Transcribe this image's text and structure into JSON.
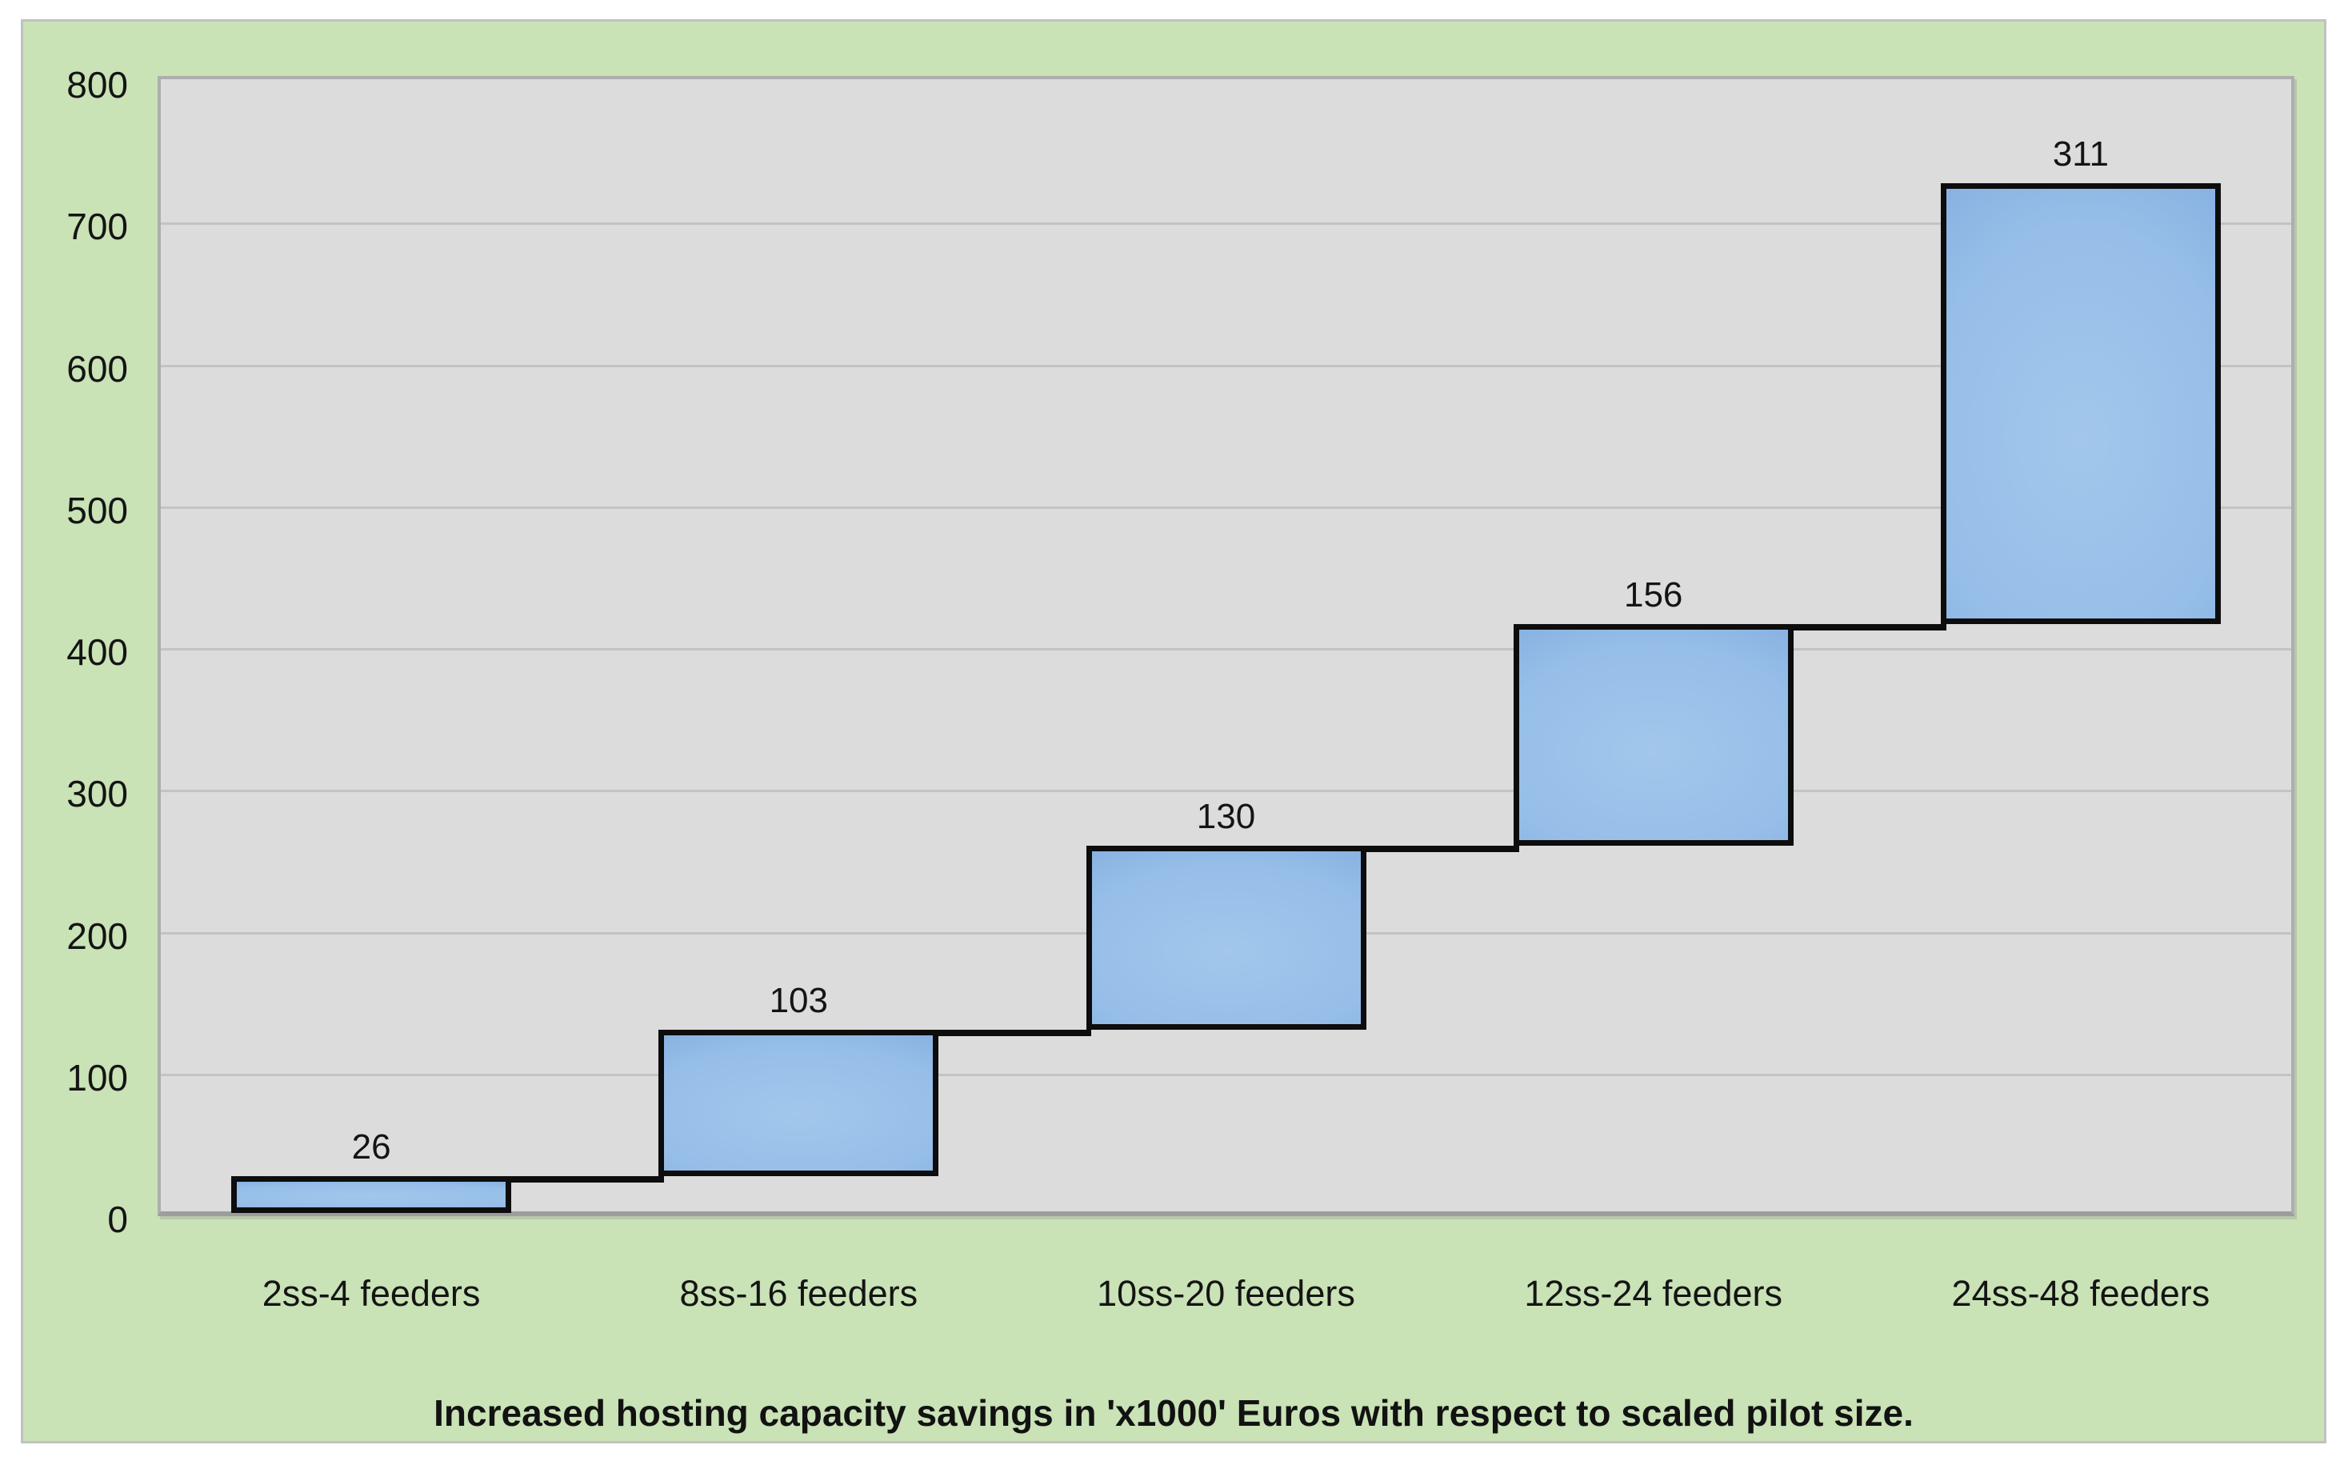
{
  "chart_data": {
    "type": "bar",
    "variant": "waterfall",
    "title": "Increased hosting capacity savings in 'x1000' Euros with respect to scaled pilot size.",
    "categories": [
      "2ss-4 feeders",
      "8ss-16 feeders",
      "10ss-20 feeders",
      "12ss-24 feeders",
      "24ss-48 feeders"
    ],
    "values": [
      26,
      103,
      130,
      156,
      311
    ],
    "data_labels": [
      "26",
      "103",
      "130",
      "156",
      "311"
    ],
    "cumulative_levels": [
      26,
      129,
      259,
      415,
      726
    ],
    "ylim": [
      0,
      800
    ],
    "yticks": [
      0,
      100,
      200,
      300,
      400,
      500,
      600,
      700,
      800
    ],
    "grid": "horizontal",
    "legend": "none",
    "colors": {
      "panel_background": "#c9e2b6",
      "plot_background": "#dcdcdc",
      "gridline": "#c3c3c3",
      "bar_fill_light": "#9cc2ea",
      "bar_fill_dark": "#5d8ccd",
      "bar_border": "#0d0d0d",
      "text": "#141414"
    }
  }
}
